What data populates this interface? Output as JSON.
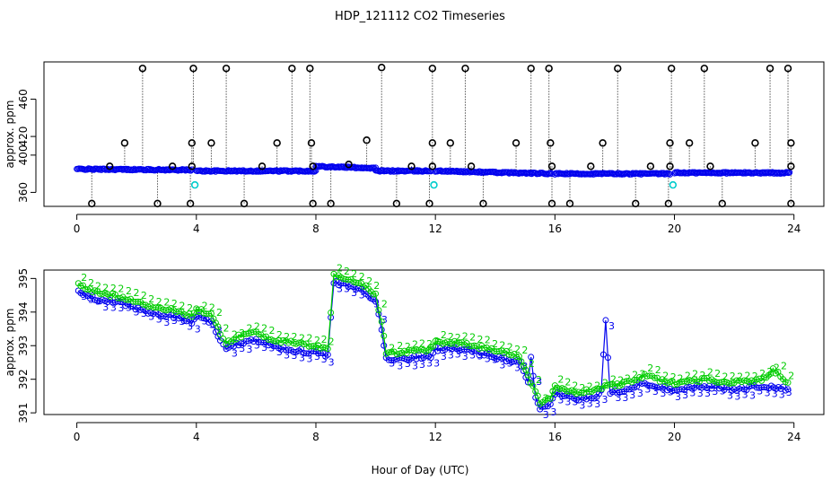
{
  "title": "HDP_121112  CO2 Timeseries",
  "xlabel": "Hour of Day (UTC)",
  "colors": {
    "black": "#000000",
    "blue": "#0000ee",
    "green": "#00cc00",
    "cyan": "#00cccc"
  },
  "chart_data": [
    {
      "type": "scatter",
      "name": "top-panel",
      "ylabel": "approx. ppm",
      "xlim": [
        -1.1,
        25
      ],
      "ylim": [
        345,
        500
      ],
      "xticks": [
        0,
        4,
        8,
        12,
        16,
        20,
        24
      ],
      "yticks": [
        360,
        400,
        420,
        460
      ],
      "series": [
        {
          "name": "baseline-blue",
          "color": "#0000ee",
          "marker": "circle",
          "segments": [
            {
              "x0": 0.0,
              "x1": 3.85,
              "y0": 385,
              "y1": 384
            },
            {
              "x0": 4.0,
              "x1": 8.0,
              "y0": 383,
              "y1": 383
            },
            {
              "x0": 8.0,
              "x1": 10.0,
              "y0": 388,
              "y1": 386
            },
            {
              "x0": 10.0,
              "x1": 11.85,
              "y0": 383,
              "y1": 383
            },
            {
              "x0": 12.0,
              "x1": 15.9,
              "y0": 383,
              "y1": 380
            },
            {
              "x0": 16.0,
              "x1": 19.85,
              "y0": 380,
              "y1": 380
            },
            {
              "x0": 20.0,
              "x1": 23.85,
              "y0": 381,
              "y1": 381
            }
          ]
        },
        {
          "name": "spikes-black",
          "color": "#000000",
          "marker": "circle",
          "x": [
            2.2,
            3.9,
            5.0,
            7.2,
            7.8,
            10.2,
            11.9,
            13.0,
            15.2,
            15.8,
            18.1,
            19.9,
            21.0,
            23.2,
            23.8
          ],
          "y": [
            493,
            493,
            493,
            493,
            493,
            494,
            493,
            493,
            493,
            493,
            493,
            493,
            493,
            493,
            493
          ]
        },
        {
          "name": "mid-black",
          "color": "#000000",
          "marker": "circle",
          "x": [
            1.6,
            3.85,
            4.5,
            6.7,
            7.85,
            9.7,
            11.9,
            12.5,
            14.7,
            15.85,
            17.6,
            19.85,
            20.5,
            22.7,
            23.9
          ],
          "y": [
            413,
            413,
            413,
            413,
            413,
            416,
            413,
            413,
            413,
            413,
            413,
            413,
            413,
            413,
            413
          ]
        },
        {
          "name": "low-black",
          "color": "#000000",
          "marker": "circle",
          "x": [
            0.5,
            2.7,
            3.8,
            5.6,
            7.9,
            8.5,
            10.7,
            11.8,
            13.6,
            15.9,
            16.5,
            18.7,
            19.8,
            21.6,
            23.9
          ],
          "y": [
            348,
            348,
            348,
            348,
            348,
            348,
            348,
            348,
            348,
            348,
            348,
            348,
            348,
            348,
            348
          ]
        },
        {
          "name": "small-black",
          "color": "#000000",
          "marker": "circle",
          "x": [
            1.1,
            3.2,
            3.85,
            6.2,
            7.9,
            9.1,
            11.2,
            11.9,
            13.2,
            15.9,
            17.2,
            19.2,
            19.85,
            21.2,
            23.9
          ],
          "y": [
            388,
            388,
            388,
            388,
            388,
            390,
            388,
            388,
            388,
            388,
            388,
            388,
            388,
            388,
            388
          ]
        },
        {
          "name": "cyan-points",
          "color": "#00cccc",
          "marker": "circle",
          "x": [
            3.95,
            11.95,
            19.95
          ],
          "y": [
            368,
            368,
            368
          ]
        }
      ]
    },
    {
      "type": "scatter",
      "name": "bottom-panel",
      "ylabel": "approx. ppm",
      "xlim": [
        -1.1,
        25
      ],
      "ylim": [
        390.95,
        395.25
      ],
      "xticks": [
        0,
        4,
        8,
        12,
        16,
        20,
        24
      ],
      "yticks": [
        391,
        392,
        393,
        394,
        395
      ],
      "series": [
        {
          "name": "series-3-blue",
          "color": "#0000ee",
          "marker": "circle+label",
          "label": "3",
          "keypoints": [
            [
              0.05,
              394.6
            ],
            [
              0.6,
              394.4
            ],
            [
              1.2,
              394.3
            ],
            [
              1.8,
              394.2
            ],
            [
              2.3,
              394.0
            ],
            [
              2.9,
              393.9
            ],
            [
              3.5,
              393.8
            ],
            [
              3.85,
              393.7
            ],
            [
              4.0,
              393.9
            ],
            [
              4.5,
              393.7
            ],
            [
              4.8,
              393.2
            ],
            [
              5.0,
              392.9
            ],
            [
              5.5,
              393.1
            ],
            [
              6.0,
              393.2
            ],
            [
              6.5,
              393.0
            ],
            [
              7.0,
              392.9
            ],
            [
              7.85,
              392.8
            ],
            [
              8.0,
              392.8
            ],
            [
              8.4,
              392.7
            ],
            [
              8.6,
              394.9
            ],
            [
              9.0,
              394.8
            ],
            [
              9.6,
              394.6
            ],
            [
              10.0,
              394.3
            ],
            [
              10.2,
              393.5
            ],
            [
              10.35,
              392.6
            ],
            [
              10.8,
              392.6
            ],
            [
              11.85,
              392.7
            ],
            [
              12.0,
              392.9
            ],
            [
              12.8,
              392.9
            ],
            [
              13.8,
              392.7
            ],
            [
              14.8,
              392.5
            ],
            [
              15.1,
              391.9
            ],
            [
              15.2,
              392.7
            ],
            [
              15.35,
              391.4
            ],
            [
              15.5,
              391.1
            ],
            [
              15.85,
              391.2
            ],
            [
              16.0,
              391.6
            ],
            [
              16.8,
              391.4
            ],
            [
              17.4,
              391.5
            ],
            [
              17.55,
              391.7
            ],
            [
              17.7,
              393.8
            ],
            [
              17.85,
              391.6
            ],
            [
              18.4,
              391.7
            ],
            [
              19.0,
              391.9
            ],
            [
              19.85,
              391.7
            ],
            [
              20.0,
              391.7
            ],
            [
              21.0,
              391.8
            ],
            [
              22.0,
              391.7
            ],
            [
              23.0,
              391.8
            ],
            [
              23.8,
              391.7
            ]
          ]
        },
        {
          "name": "series-2-green",
          "color": "#00cc00",
          "marker": "circle+label",
          "label": "2",
          "keypoints": [
            [
              0.05,
              394.8
            ],
            [
              0.6,
              394.6
            ],
            [
              1.2,
              394.5
            ],
            [
              1.8,
              394.4
            ],
            [
              2.3,
              394.2
            ],
            [
              2.9,
              394.1
            ],
            [
              3.5,
              394.0
            ],
            [
              3.85,
              393.9
            ],
            [
              4.0,
              394.1
            ],
            [
              4.5,
              393.9
            ],
            [
              4.8,
              393.4
            ],
            [
              5.0,
              393.1
            ],
            [
              5.5,
              393.3
            ],
            [
              6.0,
              393.4
            ],
            [
              6.5,
              393.2
            ],
            [
              7.0,
              393.1
            ],
            [
              7.85,
              393.0
            ],
            [
              8.0,
              393.0
            ],
            [
              8.4,
              392.9
            ],
            [
              8.6,
              395.1
            ],
            [
              9.0,
              395.0
            ],
            [
              9.6,
              394.8
            ],
            [
              10.0,
              394.5
            ],
            [
              10.2,
              393.7
            ],
            [
              10.35,
              392.8
            ],
            [
              10.8,
              392.8
            ],
            [
              11.85,
              392.9
            ],
            [
              12.0,
              393.1
            ],
            [
              12.8,
              393.1
            ],
            [
              13.8,
              392.9
            ],
            [
              14.8,
              392.7
            ],
            [
              15.1,
              392.1
            ],
            [
              15.35,
              391.6
            ],
            [
              15.5,
              391.3
            ],
            [
              15.85,
              391.4
            ],
            [
              16.0,
              391.8
            ],
            [
              16.8,
              391.6
            ],
            [
              17.4,
              391.7
            ],
            [
              17.85,
              391.8
            ],
            [
              18.4,
              391.9
            ],
            [
              19.0,
              392.1
            ],
            [
              19.85,
              391.9
            ],
            [
              20.0,
              391.9
            ],
            [
              21.0,
              392.0
            ],
            [
              22.0,
              391.9
            ],
            [
              23.0,
              392.0
            ],
            [
              23.3,
              392.3
            ],
            [
              23.8,
              391.9
            ]
          ]
        }
      ]
    }
  ]
}
